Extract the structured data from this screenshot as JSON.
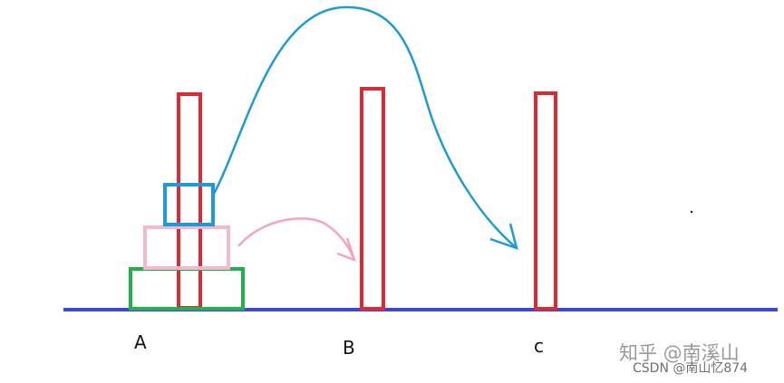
{
  "pegs": [
    {
      "label": "A"
    },
    {
      "label": "B"
    },
    {
      "label": "c"
    }
  ],
  "watermarks": [
    "知乎 @南溪山",
    "CSDN @南山忆874"
  ]
}
